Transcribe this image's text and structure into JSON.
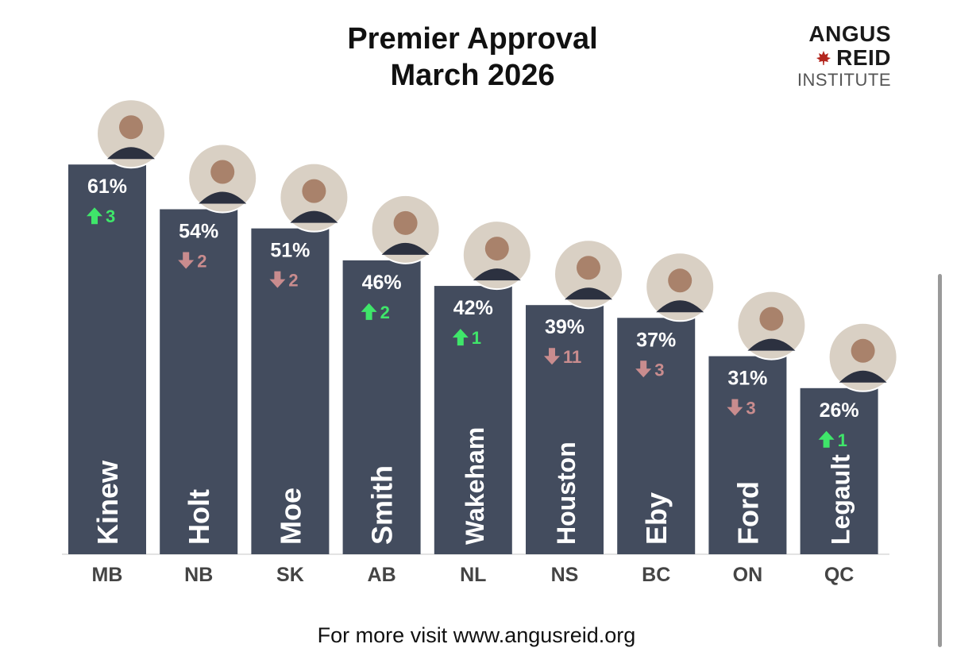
{
  "chart_data": {
    "type": "bar",
    "title_line1": "Premier Approval",
    "title_line2": "March 2026",
    "categories": [
      "MB",
      "NB",
      "SK",
      "AB",
      "NL",
      "NS",
      "BC",
      "ON",
      "QC"
    ],
    "names": [
      "Kinew",
      "Holt",
      "Moe",
      "Smith",
      "Wakeham",
      "Houston",
      "Eby",
      "Ford",
      "Legault"
    ],
    "values": [
      61,
      54,
      51,
      46,
      42,
      39,
      37,
      31,
      26
    ],
    "value_labels": [
      "61%",
      "54%",
      "51%",
      "46%",
      "42%",
      "39%",
      "37%",
      "31%",
      "26%"
    ],
    "changes": [
      3,
      -2,
      -2,
      2,
      1,
      -11,
      -3,
      -3,
      1
    ],
    "change_labels": [
      "3",
      "2",
      "2",
      "2",
      "1",
      "11",
      "3",
      "3",
      "1"
    ],
    "colors": {
      "bar": "#434c5e",
      "up": "#3fe66a",
      "down": "#c98c8e",
      "value_text": "#ffffff",
      "name_text": "#ffffff",
      "category_text": "#444444",
      "baseline": "#e3e3e3"
    }
  },
  "logo": {
    "line1": "ANGUS",
    "line2": "REID",
    "line3": "INSTITUTE",
    "leaf_icon": "maple-leaf-icon",
    "leaf_color": "#b3261e"
  },
  "footer": {
    "text": "For more visit www.angusreid.org"
  }
}
